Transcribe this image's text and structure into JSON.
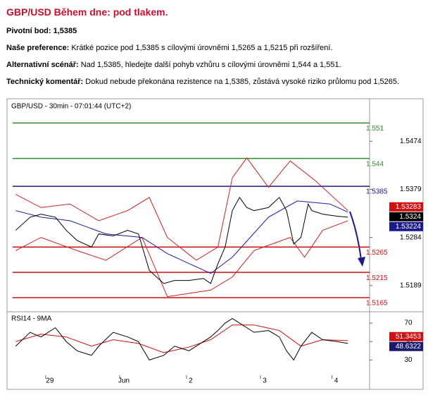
{
  "header": {
    "title": "GBP/USD Během dne: pod tlakem.",
    "paragraphs": [
      {
        "label": "Pivotní bod:",
        "text": "1,5385"
      },
      {
        "label": "Naše preference:",
        "text": "Krátké pozice pod 1,5385 s cílovými úrovněmi 1,5265 a 1,5215 při rozšíření."
      },
      {
        "label": "Alternativní scénář:",
        "text": "Nad 1,5385, hledejte další pohyb vzhůru s cílovými úrovněmi 1,544 a 1,551."
      },
      {
        "label": "Technický komentář:",
        "text": "Dokud nebude překonána rezistence na 1,5385, zůstává vysoké riziko průlomu pod 1,5265."
      }
    ]
  },
  "chart_data": [
    {
      "type": "line",
      "title": "GBP/USD - 30min - 07:01:44 (UTC+2)",
      "xlim": [
        0,
        100
      ],
      "ylim": [
        1.514,
        1.553
      ],
      "yticks": [
        1.5474,
        1.5379,
        1.5284,
        1.5189
      ],
      "levels": [
        {
          "value": 1.551,
          "color": "#2e8b2e"
        },
        {
          "value": 1.544,
          "color": "#2e8b2e"
        },
        {
          "value": 1.5385,
          "color": "#1a1a8c"
        },
        {
          "value": 1.5265,
          "color": "#d01010"
        },
        {
          "value": 1.5215,
          "color": "#d01010"
        },
        {
          "value": 1.5165,
          "color": "#d01010"
        }
      ],
      "price_tags": [
        {
          "value": 1.53283,
          "color": "#d01010"
        },
        {
          "value": 1.5324,
          "color": "#000000"
        },
        {
          "value": 1.53224,
          "color": "#1a1a8c"
        }
      ],
      "series": [
        {
          "color": "#cc2222",
          "x": [
            2,
            9,
            17,
            25,
            33,
            39,
            44,
            52,
            58,
            62,
            66,
            72,
            78,
            85,
            94
          ],
          "values": [
            1.5369,
            1.5343,
            1.535,
            1.5317,
            1.5337,
            1.5363,
            1.5284,
            1.5239,
            1.5265,
            1.5402,
            1.5441,
            1.5383,
            1.5435,
            1.5396,
            1.5337
          ]
        },
        {
          "color": "#cc2222",
          "x": [
            2,
            9,
            19,
            27,
            37,
            44,
            56,
            62,
            68,
            78,
            82,
            87,
            94
          ],
          "values": [
            1.5258,
            1.5284,
            1.5258,
            1.5239,
            1.5284,
            1.5167,
            1.518,
            1.5206,
            1.5258,
            1.5284,
            1.5245,
            1.5298,
            1.5317
          ]
        },
        {
          "color": "#1a1aa0",
          "x": [
            2,
            9,
            17,
            27,
            37,
            44,
            56,
            62,
            72,
            80,
            89,
            94
          ],
          "values": [
            1.5337,
            1.5324,
            1.5317,
            1.5291,
            1.5284,
            1.5252,
            1.5213,
            1.5245,
            1.5324,
            1.5356,
            1.535,
            1.5334
          ]
        },
        {
          "color": "#000000",
          "x": [
            2,
            6,
            9,
            13,
            16,
            19,
            23,
            25,
            29,
            33,
            36,
            39,
            43,
            46,
            50,
            54,
            56,
            58,
            60,
            62,
            64,
            66,
            68,
            72,
            75,
            77,
            79,
            81,
            83,
            84,
            87,
            91,
            94
          ],
          "values": [
            1.5298,
            1.5324,
            1.533,
            1.5324,
            1.5298,
            1.5278,
            1.5265,
            1.5291,
            1.5287,
            1.5298,
            1.5291,
            1.5219,
            1.5193,
            1.5199,
            1.5199,
            1.5203,
            1.5193,
            1.5232,
            1.5265,
            1.5337,
            1.5363,
            1.5343,
            1.5337,
            1.5343,
            1.5363,
            1.5337,
            1.5271,
            1.5284,
            1.535,
            1.5337,
            1.533,
            1.5326,
            1.5324
          ]
        }
      ]
    },
    {
      "type": "line",
      "title": "RSI14 - 9MA",
      "xlim": [
        0,
        100
      ],
      "ylim": [
        15,
        80
      ],
      "yticks": [
        70,
        50,
        30
      ],
      "xticks": [
        {
          "value": 10.3,
          "label": "29"
        },
        {
          "value": 30.8,
          "label": "Jun"
        },
        {
          "value": 49.3,
          "label": "2"
        },
        {
          "value": 69.8,
          "label": "3"
        },
        {
          "value": 89.6,
          "label": "4"
        }
      ],
      "price_tags": [
        {
          "value": 51.3453,
          "color": "#d01010"
        },
        {
          "value": 48.6322,
          "color": "#1a1a6c"
        }
      ],
      "series": [
        {
          "color": "#d01010",
          "x": [
            2,
            9,
            16,
            23,
            29,
            36,
            43,
            50,
            56,
            62,
            68,
            75,
            81,
            87,
            94
          ],
          "values": [
            50,
            58,
            55,
            45,
            52,
            48,
            38,
            44,
            52,
            68,
            68,
            62,
            45,
            52,
            51
          ]
        },
        {
          "color": "#000000",
          "x": [
            2,
            6,
            9,
            13,
            16,
            19,
            23,
            25,
            29,
            33,
            36,
            39,
            43,
            46,
            50,
            54,
            56,
            58,
            60,
            62,
            64,
            66,
            68,
            72,
            75,
            77,
            79,
            81,
            83,
            84,
            87,
            91,
            94
          ],
          "values": [
            45,
            60,
            55,
            65,
            50,
            40,
            35,
            45,
            60,
            55,
            50,
            30,
            35,
            45,
            40,
            50,
            55,
            62,
            70,
            75,
            70,
            65,
            60,
            62,
            55,
            40,
            30,
            45,
            55,
            60,
            52,
            50,
            48
          ]
        }
      ]
    }
  ]
}
